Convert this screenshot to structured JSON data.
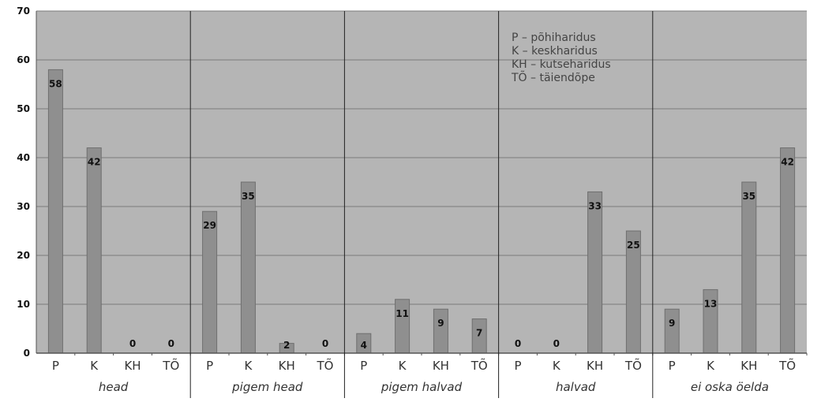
{
  "chart_data": {
    "type": "bar",
    "ylim": [
      0,
      70
    ],
    "yticks": [
      "0",
      "10",
      "20",
      "30",
      "40",
      "50",
      "60",
      "70"
    ],
    "grid": true,
    "groups": [
      {
        "name": "head",
        "categories": [
          "P",
          "K",
          "KH",
          "TÕ"
        ],
        "values": [
          58,
          42,
          0,
          0
        ]
      },
      {
        "name": "pigem head",
        "categories": [
          "P",
          "K",
          "KH",
          "TÕ"
        ],
        "values": [
          29,
          35,
          2,
          0
        ]
      },
      {
        "name": "pigem halvad",
        "categories": [
          "P",
          "K",
          "KH",
          "TÕ"
        ],
        "values": [
          4,
          11,
          9,
          7
        ]
      },
      {
        "name": "halvad",
        "categories": [
          "P",
          "K",
          "KH",
          "TÕ"
        ],
        "values": [
          0,
          0,
          33,
          25
        ]
      },
      {
        "name": "ei oska öelda",
        "categories": [
          "P",
          "K",
          "KH",
          "TÕ"
        ],
        "values": [
          9,
          13,
          35,
          42
        ]
      }
    ],
    "legend_position": "top-right",
    "legend": [
      "P – põhiharidus",
      "K – keskharidus",
      "KH – kutseharidus",
      "TÕ – täiendõpe"
    ],
    "colors": {
      "plot_background": "#b5b5b5",
      "bar_fill": "#8f8f8f",
      "bar_stroke": "#6e6e6e",
      "grid": "#7a7a7a",
      "separator": "#222222"
    }
  }
}
